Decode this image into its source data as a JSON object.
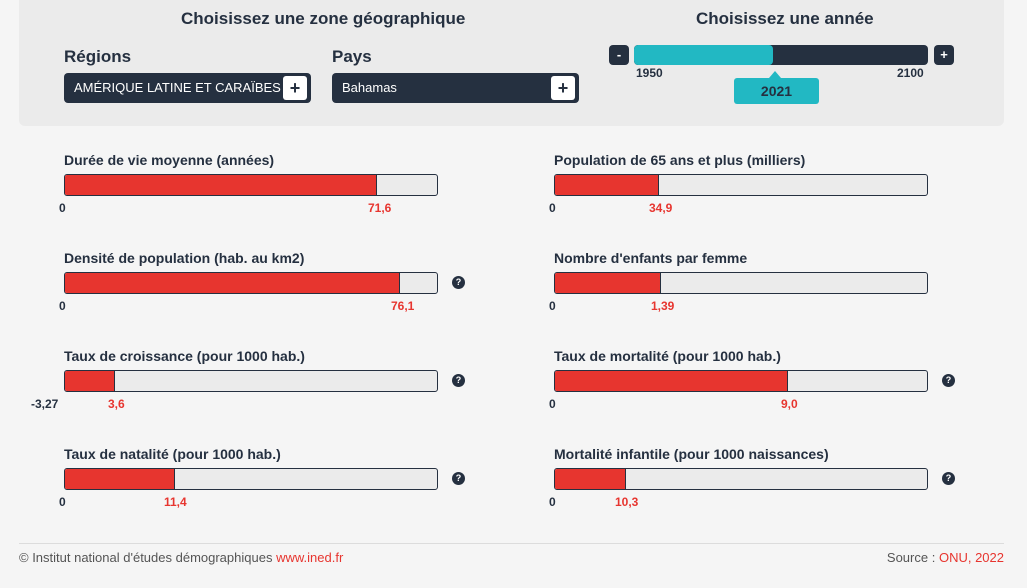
{
  "controls": {
    "zone_title": "Choisissez une zone géographique",
    "year_title": "Choisissez une année",
    "region_label": "Régions",
    "region_value": "AMÉRIQUE LATINE ET CARAÏBES",
    "country_label": "Pays",
    "country_value": "Bahamas",
    "plus_symbol": "+",
    "minus_symbol": "-",
    "year_min": "1950",
    "year_max": "2100",
    "year_value": "2021",
    "year_fraction": 0.474
  },
  "indicators": [
    {
      "title": "Durée de vie moyenne (années)",
      "min": "0",
      "value": "71,6",
      "fill": 0.84,
      "help": false
    },
    {
      "title": "Population de 65 ans et plus (milliers)",
      "min": "0",
      "value": "34,9",
      "fill": 0.28,
      "help": false
    },
    {
      "title": "Densité de population (hab. au km2)",
      "min": "0",
      "value": "76,1",
      "fill": 0.9,
      "help": true
    },
    {
      "title": "Nombre d'enfants par femme",
      "min": "0",
      "value": "1,39",
      "fill": 0.285,
      "help": false
    },
    {
      "title": "Taux de croissance (pour 1000 hab.)",
      "min": "-3,27",
      "value": "3,6",
      "fill": 0.135,
      "help": true
    },
    {
      "title": "Taux de mortalité (pour 1000 hab.)",
      "min": "0",
      "value": "9,0",
      "fill": 0.625,
      "help": true
    },
    {
      "title": "Taux de natalité (pour 1000 hab.)",
      "min": "0",
      "value": "11,4",
      "fill": 0.295,
      "help": true
    },
    {
      "title": "Mortalité infantile (pour 1000 naissances)",
      "min": "0",
      "value": "10,3",
      "fill": 0.19,
      "help": true
    }
  ],
  "help_symbol": "?",
  "footer": {
    "copyright": "© Institut national d'études démographiques",
    "site": "www.ined.fr",
    "source_label": "Source :",
    "source_value": "ONU, 2022"
  }
}
